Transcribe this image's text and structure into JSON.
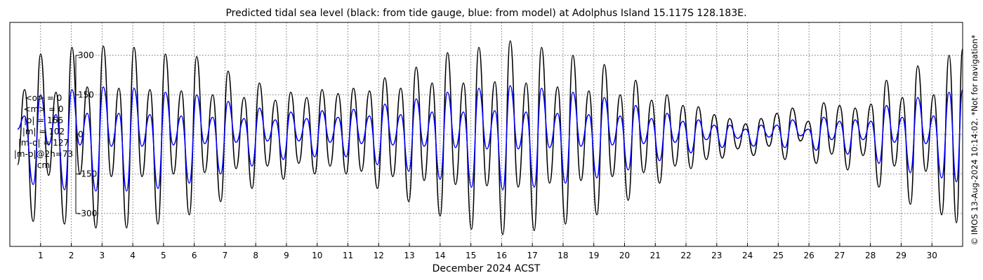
{
  "chart_data": {
    "type": "line",
    "title": "Predicted tidal sea level (black: from tide gauge, blue: from model) at Adolphus Island 15.117S 128.183E.",
    "xlabel": "December 2024 ACST",
    "ylabel": "",
    "xlim": [
      0.0,
      31.0
    ],
    "ylim": [
      -425,
      425
    ],
    "yticks": [
      -300,
      -150,
      0,
      150,
      300
    ],
    "ytick_labels": [
      "-300",
      "-150",
      "0",
      "150",
      "300"
    ],
    "xticks": [
      1,
      2,
      3,
      4,
      5,
      6,
      7,
      8,
      9,
      10,
      11,
      12,
      13,
      14,
      15,
      16,
      17,
      18,
      19,
      20,
      21,
      22,
      23,
      24,
      25,
      26,
      27,
      28,
      29,
      30
    ],
    "xtick_labels": [
      "1",
      "2",
      "3",
      "4",
      "5",
      "6",
      "7",
      "8",
      "9",
      "10",
      "11",
      "12",
      "13",
      "14",
      "15",
      "16",
      "17",
      "18",
      "19",
      "20",
      "21",
      "22",
      "23",
      "24",
      "25",
      "26",
      "27",
      "28",
      "29",
      "30"
    ],
    "grid": true,
    "series": [
      {
        "color": "#000000",
        "x": [
          0.25,
          0.48,
          0.76,
          1.0,
          1.26,
          1.5,
          1.78,
          2.02,
          2.28,
          2.52,
          2.8,
          3.04,
          3.3,
          3.55,
          3.8,
          4.04,
          4.3,
          4.56,
          4.82,
          5.06,
          5.32,
          5.58,
          5.84,
          6.08,
          6.34,
          6.6,
          6.86,
          7.1,
          7.36,
          7.62,
          7.88,
          8.12,
          8.38,
          8.64,
          8.9,
          9.14,
          9.4,
          9.66,
          9.92,
          10.16,
          10.42,
          10.68,
          10.94,
          11.18,
          11.44,
          11.7,
          11.96,
          12.2,
          12.46,
          12.72,
          12.98,
          13.22,
          13.48,
          13.74,
          14.0,
          14.24,
          14.5,
          14.76,
          15.02,
          15.26,
          15.52,
          15.78,
          16.04,
          16.28,
          16.54,
          16.8,
          17.06,
          17.3,
          17.56,
          17.82,
          18.08,
          18.32,
          18.58,
          18.84,
          19.1,
          19.34,
          19.6,
          19.86,
          20.12,
          20.36,
          20.62,
          20.88,
          21.14,
          21.38,
          21.64,
          21.9,
          22.16,
          22.4,
          22.66,
          22.92,
          23.18,
          23.42,
          23.68,
          23.94,
          24.2,
          24.44,
          24.7,
          24.96,
          25.22,
          25.46,
          25.72,
          25.98,
          26.24,
          26.48,
          26.74,
          27.0,
          27.26,
          27.5,
          27.76,
          28.02,
          28.28,
          28.52,
          28.78,
          29.04,
          29.3,
          29.54,
          29.8,
          30.06,
          30.32,
          30.56,
          30.8,
          31.0
        ],
        "y": [
          -115,
          170,
          -330,
          305,
          -155,
          160,
          -340,
          330,
          -150,
          180,
          -355,
          335,
          -160,
          175,
          -355,
          330,
          -160,
          170,
          -340,
          305,
          -150,
          165,
          -305,
          295,
          -145,
          150,
          -255,
          240,
          -130,
          140,
          -205,
          195,
          -120,
          130,
          -170,
          160,
          -110,
          140,
          -150,
          170,
          -120,
          155,
          -150,
          175,
          -140,
          165,
          -205,
          215,
          -160,
          175,
          -255,
          255,
          -175,
          195,
          -310,
          310,
          -190,
          195,
          -360,
          330,
          -195,
          200,
          -380,
          355,
          -200,
          195,
          -365,
          330,
          -185,
          180,
          -340,
          300,
          -175,
          165,
          -305,
          265,
          -160,
          150,
          -250,
          205,
          -145,
          130,
          -185,
          150,
          -120,
          110,
          -130,
          105,
          -95,
          75,
          -90,
          60,
          -55,
          40,
          -80,
          60,
          -45,
          80,
          -95,
          100,
          -25,
          50,
          -110,
          120,
          -75,
          110,
          -135,
          100,
          -80,
          115,
          -200,
          205,
          -120,
          140,
          -265,
          260,
          -140,
          150,
          -305,
          300,
          -335,
          325
        ]
      },
      {
        "color": "#0000ff",
        "x": [
          0.25,
          0.48,
          0.76,
          1.0,
          1.26,
          1.5,
          1.78,
          2.02,
          2.28,
          2.52,
          2.8,
          3.04,
          3.3,
          3.55,
          3.8,
          4.04,
          4.3,
          4.56,
          4.82,
          5.06,
          5.32,
          5.58,
          5.84,
          6.08,
          6.34,
          6.6,
          6.86,
          7.1,
          7.36,
          7.62,
          7.88,
          8.12,
          8.38,
          8.64,
          8.9,
          9.14,
          9.4,
          9.66,
          9.92,
          10.16,
          10.42,
          10.68,
          10.94,
          11.18,
          11.44,
          11.7,
          11.96,
          12.2,
          12.46,
          12.72,
          12.98,
          13.22,
          13.48,
          13.74,
          14.0,
          14.24,
          14.5,
          14.76,
          15.02,
          15.26,
          15.52,
          15.78,
          16.04,
          16.28,
          16.54,
          16.8,
          17.06,
          17.3,
          17.56,
          17.82,
          18.08,
          18.32,
          18.58,
          18.84,
          19.1,
          19.34,
          19.6,
          19.86,
          20.12,
          20.36,
          20.62,
          20.88,
          21.14,
          21.38,
          21.64,
          21.9,
          22.16,
          22.4,
          22.66,
          22.92,
          23.18,
          23.42,
          23.68,
          23.94,
          24.2,
          24.44,
          24.7,
          24.96,
          25.22,
          25.46,
          25.72,
          25.98,
          26.24,
          26.48,
          26.74,
          27.0,
          27.26,
          27.5,
          27.76,
          28.02,
          28.28,
          28.52,
          28.78,
          29.04,
          29.3,
          29.54,
          29.8,
          30.06,
          30.32,
          30.56,
          30.8,
          31.0
        ],
        "y": [
          20,
          70,
          -190,
          150,
          -40,
          75,
          -210,
          170,
          -40,
          80,
          -215,
          180,
          -45,
          80,
          -215,
          175,
          -45,
          75,
          -205,
          160,
          -40,
          70,
          -185,
          150,
          -35,
          65,
          -150,
          125,
          -30,
          60,
          -120,
          100,
          -25,
          55,
          -95,
          85,
          -25,
          60,
          -85,
          90,
          -30,
          65,
          -85,
          95,
          -35,
          70,
          -115,
          115,
          -40,
          75,
          -140,
          135,
          -45,
          85,
          -170,
          160,
          -50,
          85,
          -200,
          175,
          -55,
          90,
          -210,
          185,
          -55,
          85,
          -200,
          175,
          -50,
          80,
          -185,
          160,
          -45,
          75,
          -165,
          140,
          -40,
          70,
          -135,
          110,
          -35,
          60,
          -100,
          80,
          -30,
          50,
          -70,
          55,
          -20,
          35,
          -50,
          35,
          -15,
          20,
          -45,
          35,
          -10,
          35,
          -50,
          55,
          -5,
          20,
          -60,
          65,
          -20,
          50,
          -75,
          55,
          -20,
          50,
          -110,
          110,
          -30,
          65,
          -145,
          140,
          -35,
          70,
          -165,
          160,
          -180,
          170
        ]
      }
    ]
  },
  "stats": {
    "lines": [
      "<o> = 0",
      "<m> = 0",
      "|o| = 166",
      "|m| = 102",
      "|m-o| = 127",
      "|m-o|@2h=73",
      "cm"
    ]
  },
  "credit": "© IMOS 13-Aug-2024 10:14:02. *Not for navigation*"
}
